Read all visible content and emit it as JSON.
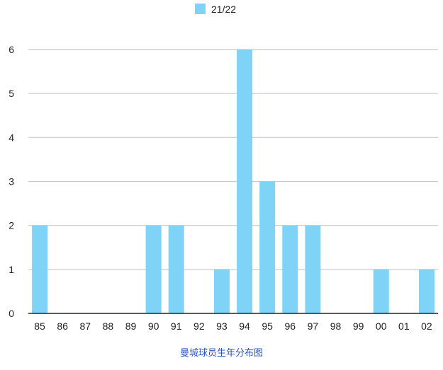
{
  "chart_data": {
    "type": "bar",
    "title": "",
    "xlabel": "",
    "ylabel": "",
    "categories": [
      "85",
      "86",
      "87",
      "88",
      "89",
      "90",
      "91",
      "92",
      "93",
      "94",
      "95",
      "96",
      "97",
      "98",
      "99",
      "00",
      "01",
      "02"
    ],
    "series": [
      {
        "name": "21/22",
        "color": "#7fd3f7",
        "values": [
          2,
          0,
          0,
          0,
          0,
          2,
          2,
          0,
          1,
          6,
          3,
          2,
          2,
          0,
          0,
          1,
          0,
          1
        ]
      }
    ],
    "ylim": [
      0,
      6
    ],
    "yticks": [
      0,
      1,
      2,
      3,
      4,
      5,
      6
    ],
    "grid": true,
    "legend_position": "top-center"
  },
  "caption": "曼城球员生年分布图",
  "colors": {
    "bar": "#7fd3f7",
    "grid": "#c8c8c8",
    "axis": "#222222",
    "caption": "#2a56b8"
  }
}
